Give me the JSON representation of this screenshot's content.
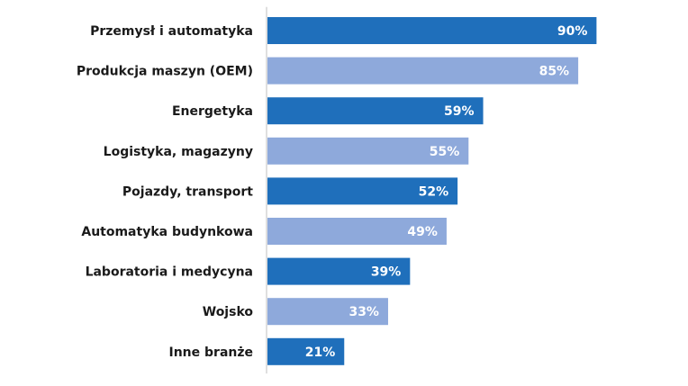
{
  "chart_data": {
    "type": "bar",
    "orientation": "horizontal",
    "categories": [
      "Przemysł i automatyka",
      "Produkcja maszyn (OEM)",
      "Energetyka",
      "Logistyka, magazyny",
      "Pojazdy, transport",
      "Automatyka budynkowa",
      "Laboratoria i medycyna",
      "Wojsko",
      "Inne branże"
    ],
    "values": [
      90,
      85,
      59,
      55,
      52,
      49,
      39,
      33,
      21
    ],
    "value_labels": [
      "90%",
      "85%",
      "59%",
      "55%",
      "52%",
      "49%",
      "39%",
      "33%",
      "21%"
    ],
    "xlim": [
      0,
      100
    ],
    "colors": [
      "#1f6fbb",
      "#8ea9db"
    ],
    "grid": false,
    "legend": "none"
  }
}
